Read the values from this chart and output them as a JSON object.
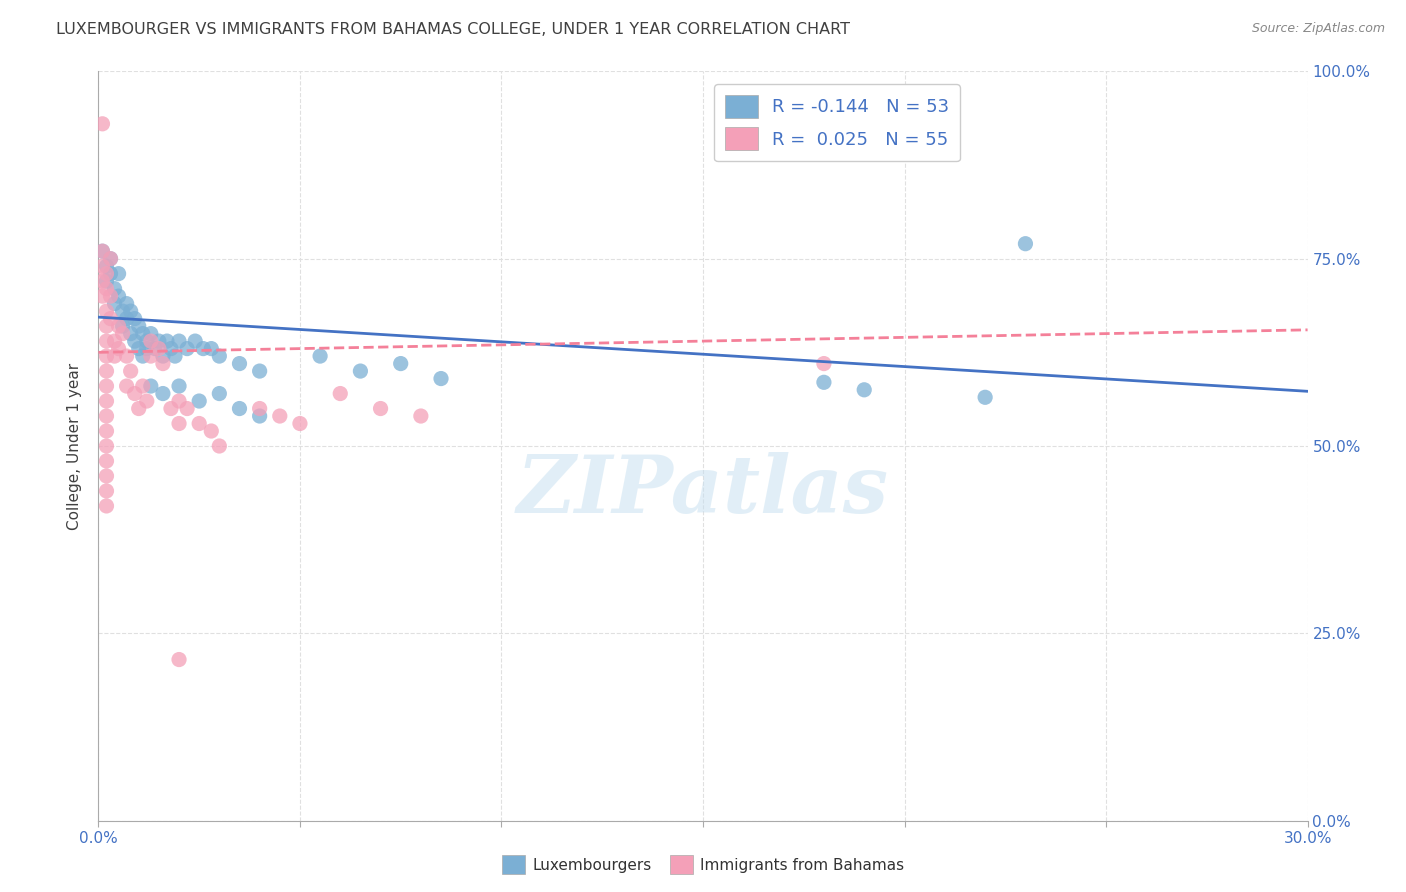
{
  "title": "LUXEMBOURGER VS IMMIGRANTS FROM BAHAMAS COLLEGE, UNDER 1 YEAR CORRELATION CHART",
  "source": "Source: ZipAtlas.com",
  "ylabel": "College, Under 1 year",
  "legend_items": [
    {
      "label": "R = -0.144   N = 53",
      "color": "#a8c4e0"
    },
    {
      "label": "R =  0.025   N = 55",
      "color": "#f4b8c8"
    }
  ],
  "legend_labels_bottom": [
    "Luxembourgers",
    "Immigrants from Bahamas"
  ],
  "watermark": "ZIPatlas",
  "blue_scatter": [
    [
      0.001,
      0.76
    ],
    [
      0.002,
      0.74
    ],
    [
      0.002,
      0.72
    ],
    [
      0.003,
      0.75
    ],
    [
      0.003,
      0.73
    ],
    [
      0.004,
      0.71
    ],
    [
      0.004,
      0.69
    ],
    [
      0.005,
      0.73
    ],
    [
      0.005,
      0.7
    ],
    [
      0.006,
      0.68
    ],
    [
      0.006,
      0.66
    ],
    [
      0.007,
      0.69
    ],
    [
      0.007,
      0.67
    ],
    [
      0.008,
      0.68
    ],
    [
      0.008,
      0.65
    ],
    [
      0.009,
      0.67
    ],
    [
      0.009,
      0.64
    ],
    [
      0.01,
      0.66
    ],
    [
      0.01,
      0.63
    ],
    [
      0.011,
      0.65
    ],
    [
      0.011,
      0.62
    ],
    [
      0.012,
      0.64
    ],
    [
      0.012,
      0.63
    ],
    [
      0.013,
      0.65
    ],
    [
      0.014,
      0.63
    ],
    [
      0.015,
      0.64
    ],
    [
      0.016,
      0.62
    ],
    [
      0.017,
      0.64
    ],
    [
      0.018,
      0.63
    ],
    [
      0.019,
      0.62
    ],
    [
      0.02,
      0.64
    ],
    [
      0.022,
      0.63
    ],
    [
      0.024,
      0.64
    ],
    [
      0.026,
      0.63
    ],
    [
      0.028,
      0.63
    ],
    [
      0.03,
      0.62
    ],
    [
      0.035,
      0.61
    ],
    [
      0.04,
      0.6
    ],
    [
      0.055,
      0.62
    ],
    [
      0.065,
      0.6
    ],
    [
      0.075,
      0.61
    ],
    [
      0.085,
      0.59
    ],
    [
      0.013,
      0.58
    ],
    [
      0.016,
      0.57
    ],
    [
      0.02,
      0.58
    ],
    [
      0.025,
      0.56
    ],
    [
      0.03,
      0.57
    ],
    [
      0.035,
      0.55
    ],
    [
      0.04,
      0.54
    ],
    [
      0.18,
      0.585
    ],
    [
      0.23,
      0.77
    ],
    [
      0.19,
      0.575
    ],
    [
      0.22,
      0.565
    ]
  ],
  "pink_scatter": [
    [
      0.001,
      0.93
    ],
    [
      0.001,
      0.76
    ],
    [
      0.001,
      0.74
    ],
    [
      0.001,
      0.72
    ],
    [
      0.001,
      0.7
    ],
    [
      0.002,
      0.73
    ],
    [
      0.002,
      0.71
    ],
    [
      0.002,
      0.68
    ],
    [
      0.002,
      0.66
    ],
    [
      0.002,
      0.64
    ],
    [
      0.002,
      0.62
    ],
    [
      0.002,
      0.6
    ],
    [
      0.002,
      0.58
    ],
    [
      0.002,
      0.56
    ],
    [
      0.002,
      0.54
    ],
    [
      0.002,
      0.52
    ],
    [
      0.002,
      0.5
    ],
    [
      0.002,
      0.48
    ],
    [
      0.002,
      0.46
    ],
    [
      0.002,
      0.44
    ],
    [
      0.002,
      0.42
    ],
    [
      0.003,
      0.75
    ],
    [
      0.003,
      0.7
    ],
    [
      0.003,
      0.67
    ],
    [
      0.004,
      0.64
    ],
    [
      0.004,
      0.62
    ],
    [
      0.005,
      0.66
    ],
    [
      0.005,
      0.63
    ],
    [
      0.006,
      0.65
    ],
    [
      0.007,
      0.62
    ],
    [
      0.007,
      0.58
    ],
    [
      0.008,
      0.6
    ],
    [
      0.009,
      0.57
    ],
    [
      0.01,
      0.55
    ],
    [
      0.011,
      0.58
    ],
    [
      0.012,
      0.56
    ],
    [
      0.013,
      0.64
    ],
    [
      0.013,
      0.62
    ],
    [
      0.015,
      0.63
    ],
    [
      0.016,
      0.61
    ],
    [
      0.018,
      0.55
    ],
    [
      0.02,
      0.53
    ],
    [
      0.02,
      0.56
    ],
    [
      0.022,
      0.55
    ],
    [
      0.025,
      0.53
    ],
    [
      0.028,
      0.52
    ],
    [
      0.03,
      0.5
    ],
    [
      0.04,
      0.55
    ],
    [
      0.045,
      0.54
    ],
    [
      0.05,
      0.53
    ],
    [
      0.06,
      0.57
    ],
    [
      0.07,
      0.55
    ],
    [
      0.08,
      0.54
    ],
    [
      0.02,
      0.215
    ],
    [
      0.18,
      0.61
    ]
  ],
  "blue_line": {
    "x0": 0.0,
    "y0": 0.672,
    "x1": 0.3,
    "y1": 0.573
  },
  "pink_line": {
    "x0": 0.0,
    "y0": 0.625,
    "x1": 0.3,
    "y1": 0.655
  },
  "xmin": 0.0,
  "xmax": 0.3,
  "ymin": 0.0,
  "ymax": 1.0,
  "bg_color": "#ffffff",
  "blue_color": "#7bafd4",
  "pink_color": "#f4a0b8",
  "blue_line_color": "#4472c4",
  "pink_line_color": "#f48099",
  "grid_color": "#e0e0e0",
  "title_color": "#404040",
  "axis_color": "#4472c4",
  "title_fontsize": 11.5,
  "axis_label_fontsize": 11
}
